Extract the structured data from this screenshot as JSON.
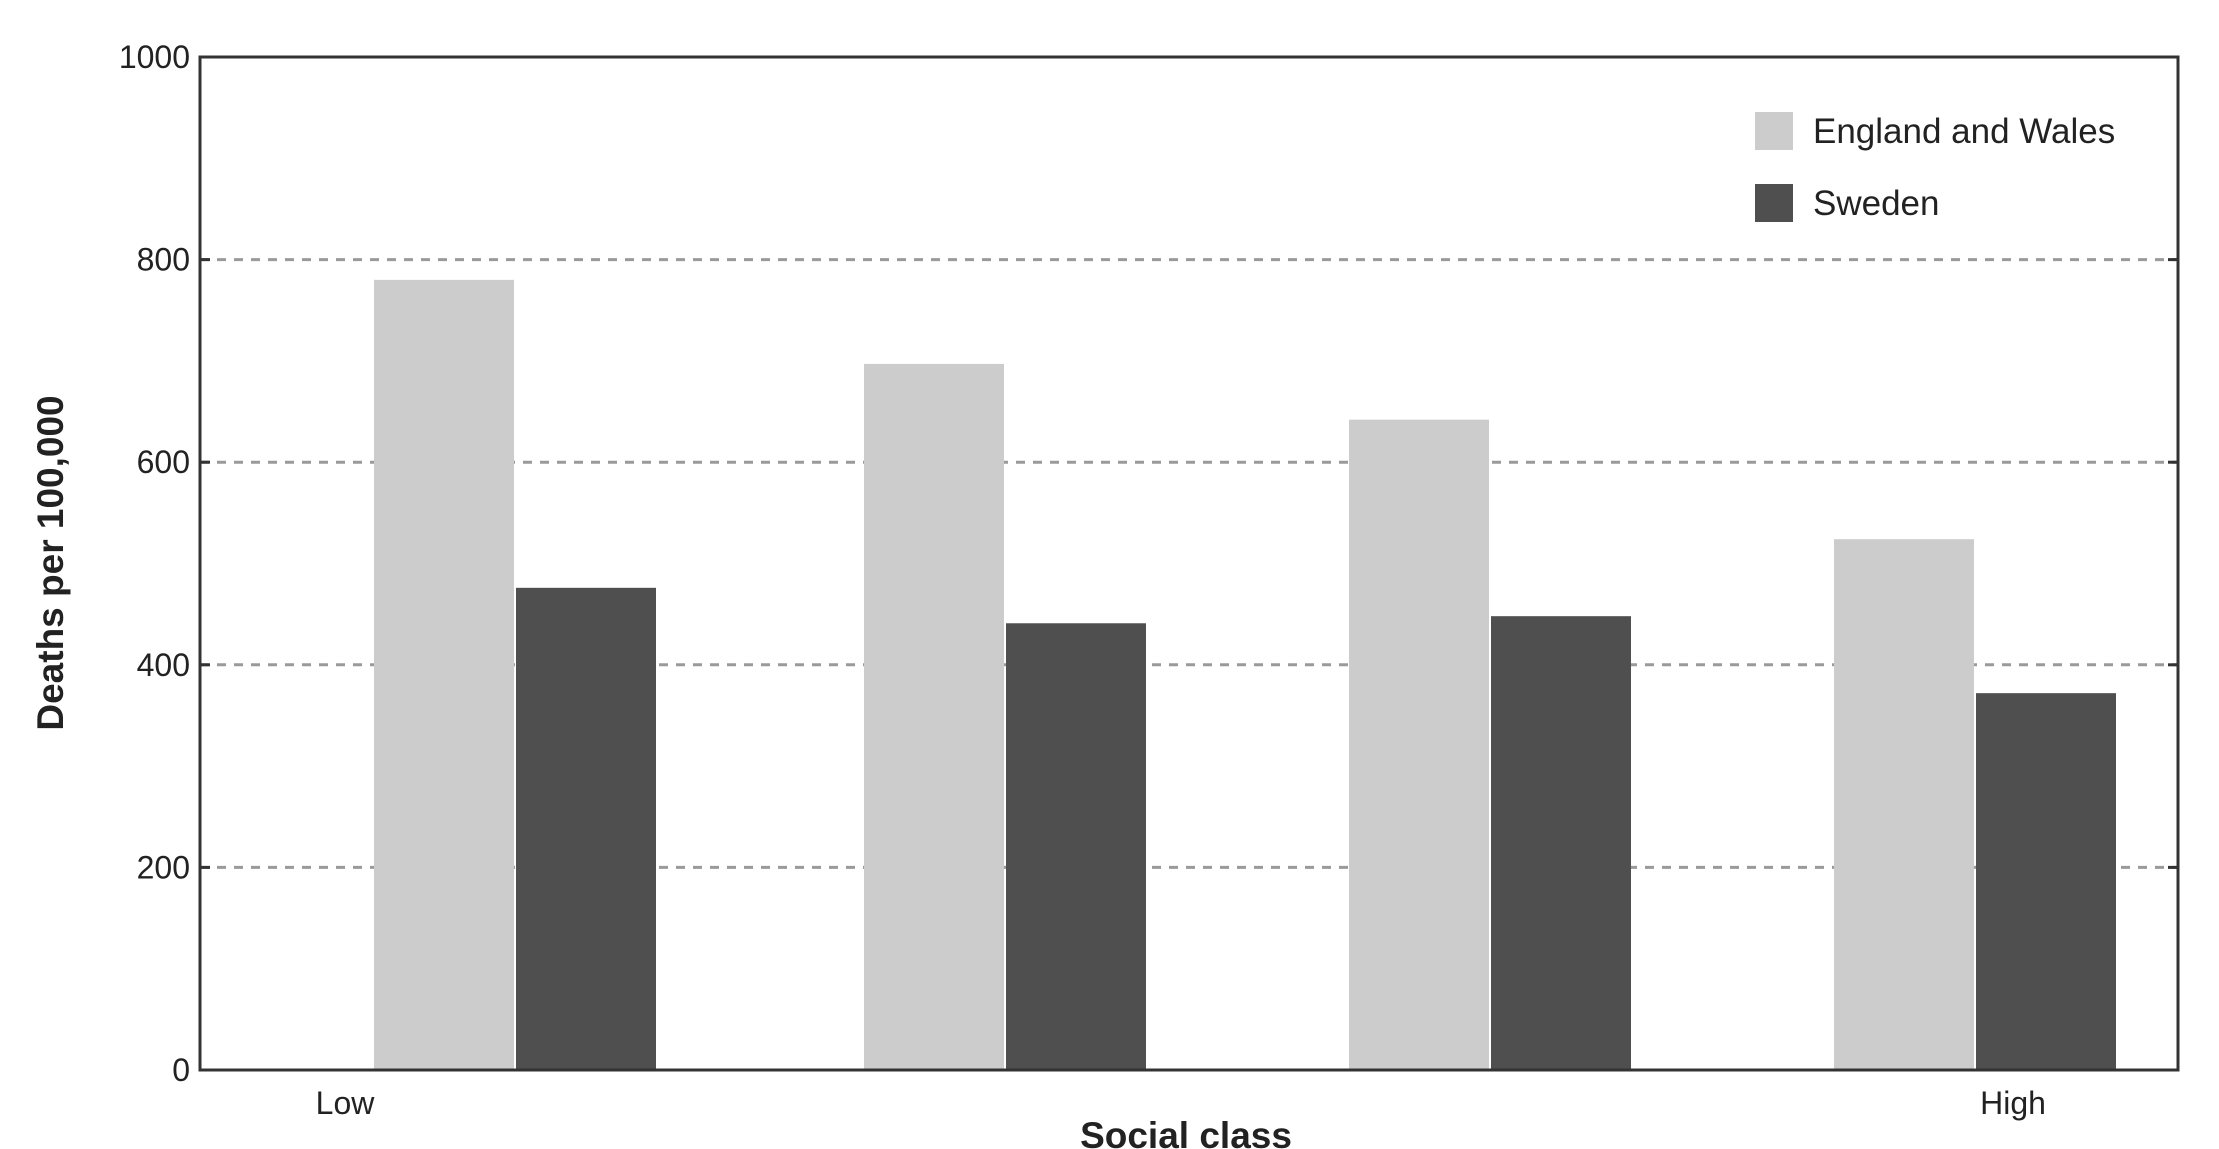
{
  "chart_data": {
    "type": "bar",
    "categories": [
      "Low",
      "",
      "",
      "High"
    ],
    "series": [
      {
        "name": "England and Wales",
        "values": [
          780,
          697,
          642,
          524
        ],
        "color": "#cccccc"
      },
      {
        "name": "Sweden",
        "values": [
          476,
          441,
          448,
          372
        ],
        "color": "#4f4f4f"
      }
    ],
    "title": "",
    "xlabel": "Social class",
    "ylabel": "Deaths per 100,000",
    "ylim": [
      0,
      1000
    ],
    "yticks": [
      0,
      200,
      400,
      600,
      800,
      1000
    ],
    "grid": "horizontal dashed",
    "legend_position": "top-right"
  }
}
